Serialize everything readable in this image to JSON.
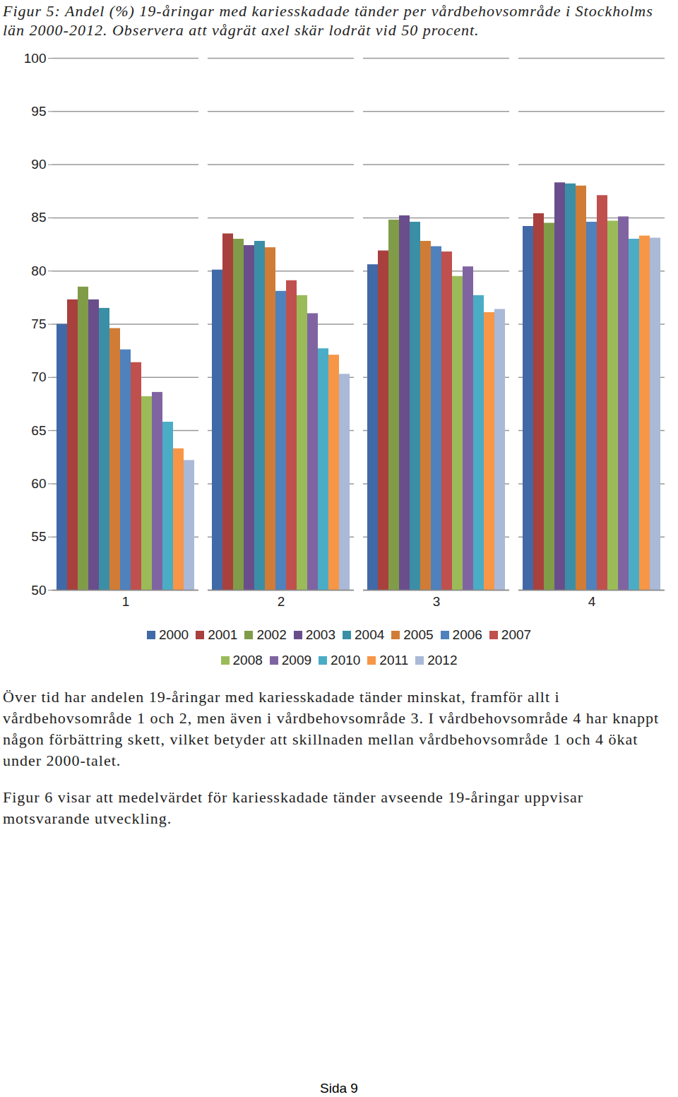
{
  "chart_data": {
    "type": "bar",
    "title": "Figur 5: Andel (%) 19-åringar med kariesskadade tänder per vårdbehovsområde i Stockholms län 2000-2012. Observera att vågrät axel skär lodrät vid 50 procent.",
    "categories": [
      "1",
      "2",
      "3",
      "4"
    ],
    "series": [
      {
        "name": "2000",
        "color": "#4169A8",
        "values": [
          75.0,
          80.1,
          80.6,
          84.2
        ]
      },
      {
        "name": "2001",
        "color": "#A8403D",
        "values": [
          77.3,
          83.5,
          81.9,
          85.4
        ]
      },
      {
        "name": "2002",
        "color": "#809C48",
        "values": [
          78.5,
          83.0,
          84.8,
          84.5
        ]
      },
      {
        "name": "2003",
        "color": "#6A4E8C",
        "values": [
          77.3,
          82.4,
          85.2,
          88.3
        ]
      },
      {
        "name": "2004",
        "color": "#3A8FA6",
        "values": [
          76.5,
          82.8,
          84.6,
          88.2
        ]
      },
      {
        "name": "2005",
        "color": "#D07C36",
        "values": [
          74.6,
          82.2,
          82.8,
          88.0
        ]
      },
      {
        "name": "2006",
        "color": "#4F81BD",
        "values": [
          72.6,
          78.1,
          82.3,
          84.6
        ]
      },
      {
        "name": "2007",
        "color": "#C0504D",
        "values": [
          71.4,
          79.1,
          81.8,
          87.1
        ]
      },
      {
        "name": "2008",
        "color": "#9BBB59",
        "values": [
          68.2,
          77.7,
          79.5,
          84.7
        ]
      },
      {
        "name": "2009",
        "color": "#8064A2",
        "values": [
          68.6,
          76.0,
          80.4,
          85.1
        ]
      },
      {
        "name": "2010",
        "color": "#4BACC6",
        "values": [
          65.8,
          72.7,
          77.7,
          83.0
        ]
      },
      {
        "name": "2011",
        "color": "#F79646",
        "values": [
          63.3,
          72.1,
          76.1,
          83.3
        ]
      },
      {
        "name": "2012",
        "color": "#A9B9D7",
        "values": [
          62.2,
          70.3,
          76.4,
          83.1
        ]
      }
    ],
    "ylim": [
      50,
      100
    ],
    "yticks": [
      50,
      55,
      60,
      65,
      70,
      75,
      80,
      85,
      90,
      95,
      100
    ],
    "grid": true,
    "legend": "bottom"
  },
  "page": {
    "paragraphs": [
      "Över tid har andelen 19-åringar med kariesskadade tänder minskat, framför allt i vårdbehovsområde 1 och 2, men även i vårdbehovsområde 3. I vårdbehovsområde 4 har knappt någon förbättring skett, vilket betyder att skillnaden mellan vårdbehovsområde 1 och 4 ökat under 2000-talet.",
      "Figur 6 visar att medelvärdet för kariesskadade tänder avseende 19-åringar uppvisar motsvarande utveckling."
    ],
    "footer": "Sida 9"
  }
}
